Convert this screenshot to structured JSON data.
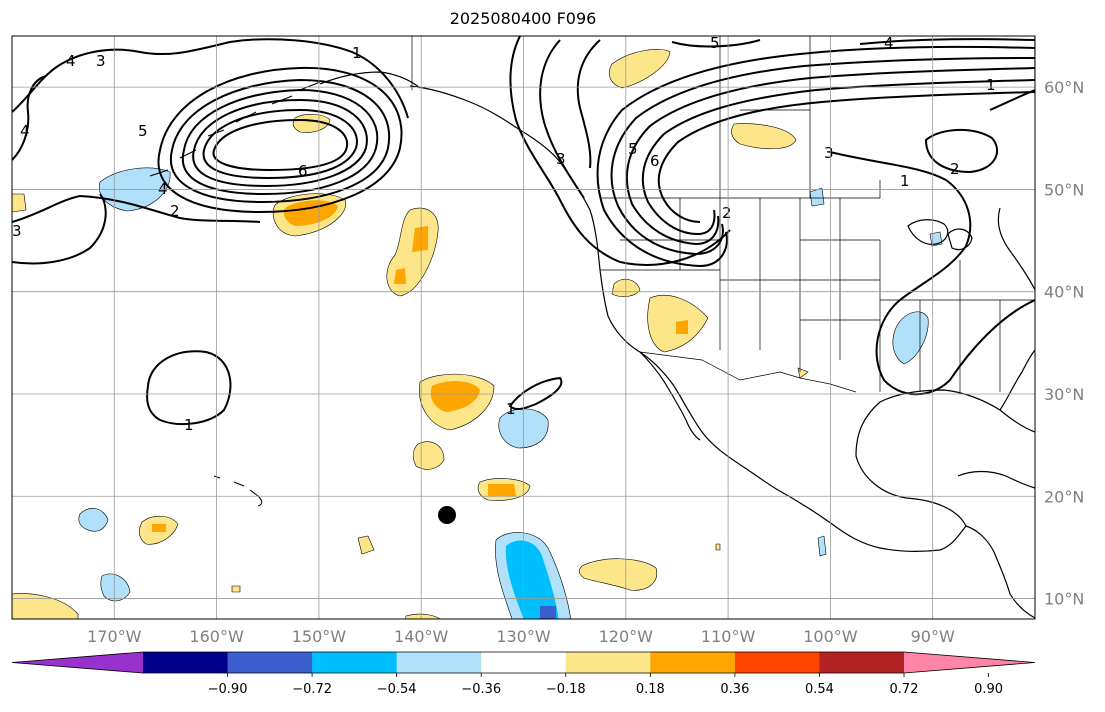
{
  "title": "2025080400 F096",
  "map": {
    "projection": "PlateCarree",
    "lon_range": [
      -180,
      -80
    ],
    "lat_range": [
      8,
      65
    ],
    "gridlines": true
  },
  "lon_ticks": [
    {
      "lon": -170,
      "label": "170°W"
    },
    {
      "lon": -160,
      "label": "160°W"
    },
    {
      "lon": -150,
      "label": "150°W"
    },
    {
      "lon": -140,
      "label": "140°W"
    },
    {
      "lon": -130,
      "label": "130°W"
    },
    {
      "lon": -120,
      "label": "120°W"
    },
    {
      "lon": -110,
      "label": "110°W"
    },
    {
      "lon": -100,
      "label": "100°W"
    },
    {
      "lon": -90,
      "label": "90°W"
    }
  ],
  "lat_ticks": [
    {
      "lat": 60,
      "label": "60°N"
    },
    {
      "lat": 50,
      "label": "50°N"
    },
    {
      "lat": 40,
      "label": "40°N"
    },
    {
      "lat": 30,
      "label": "30°N"
    },
    {
      "lat": 20,
      "label": "20°N"
    },
    {
      "lat": 10,
      "label": "10°N"
    }
  ],
  "contour_labels": [
    "1",
    "2",
    "3",
    "4",
    "5",
    "6"
  ],
  "marker": {
    "name": "storm-center-dot",
    "lon": -137.3,
    "lat": 18.0
  },
  "colorbar": {
    "colors": [
      "#9932cc",
      "#00008b",
      "#3a5fcd",
      "#00bfff",
      "#b0e0fa",
      "#ffffff",
      "#fde68a",
      "#ffa500",
      "#ff4500",
      "#b22222",
      "#ff85a8"
    ],
    "left_extension_color": "#9932cc",
    "right_extension_color": "#ff85a8",
    "tick_labels": [
      "−0.90",
      "−0.72",
      "−0.54",
      "−0.36",
      "−0.18",
      "0.18",
      "0.36",
      "0.54",
      "0.72",
      "0.90"
    ]
  }
}
